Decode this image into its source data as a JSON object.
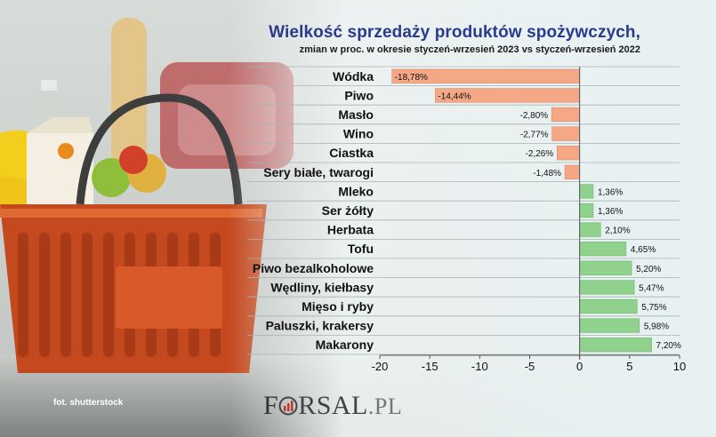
{
  "title": "Wielkość sprzedaży produktów spożywczych,",
  "subtitle": "zmian w proc. w okresie styczeń-wrzesień 2023 vs styczeń-wrzesień 2022",
  "credit": "fot. shutterstock",
  "logo": {
    "f": "F",
    "rest": "RSAL",
    "pl": ".PL"
  },
  "colors": {
    "negative": "#f4a886",
    "positive": "#8fd18d",
    "title": "#2a3a8c"
  },
  "chart_data": {
    "type": "bar",
    "orientation": "horizontal",
    "title": "Wielkość sprzedaży produktów spożywczych,",
    "subtitle": "zmian w proc. w okresie styczeń-wrzesień 2023 vs styczeń-wrzesień 2022",
    "xlabel": "",
    "ylabel": "",
    "xlim": [
      -20,
      10
    ],
    "xticks": [
      "-20",
      "-15",
      "-10",
      "-5",
      "0",
      "5",
      "10"
    ],
    "grid": "horizontal",
    "categories": [
      "Wódka",
      "Piwo",
      "Masło",
      "Wino",
      "Ciastka",
      "Sery białe, twarogi",
      "Mleko",
      "Ser żółty",
      "Herbata",
      "Tofu",
      "Piwo bezalkoholowe",
      "Wędliny, kiełbasy",
      "Mięso i ryby",
      "Paluszki, krakersy",
      "Makarony"
    ],
    "values": [
      -18.78,
      -14.44,
      -2.8,
      -2.77,
      -2.26,
      -1.48,
      1.36,
      1.36,
      2.1,
      4.65,
      5.2,
      5.47,
      5.75,
      5.98,
      7.2
    ],
    "labels": [
      "-18,78%",
      "-14,44%",
      "-2,80%",
      "-2,77%",
      "-2,26%",
      "-1,48%",
      "1,36%",
      "1,36%",
      "2,10%",
      "4,65%",
      "5,20%",
      "5,47%",
      "5,75%",
      "5,98%",
      "7,20%"
    ]
  }
}
